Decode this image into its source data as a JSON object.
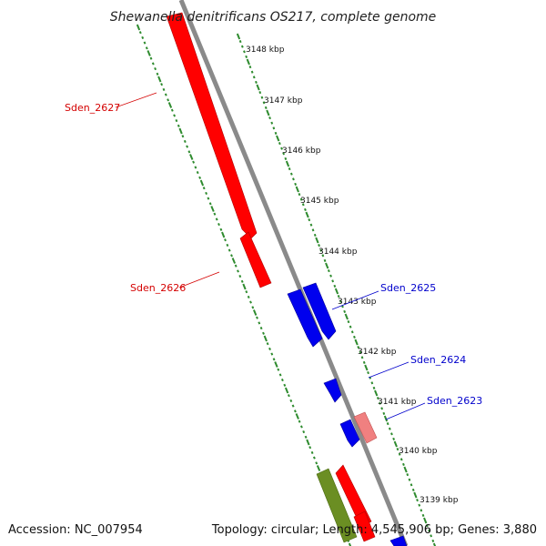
{
  "title": "Shewanella denitrificans OS217, complete genome",
  "accession": "Accession: NC_007954",
  "summary": "Topology: circular; Length: 4,545,906 bp; Genes: 3,880",
  "colors": {
    "backbone": "#8a8a8a",
    "tick_dots": "#2e8b2e",
    "forward_gene": "#ff0000",
    "reverse_gene": "#0000ee",
    "pale_gene": "#f08080",
    "olive_gene": "#6b8e23",
    "label_forward": "#d40000",
    "label_reverse": "#0000cc"
  },
  "ticks": [
    {
      "label": "3148 kbp"
    },
    {
      "label": "3147 kbp"
    },
    {
      "label": "3146 kbp"
    },
    {
      "label": "3145 kbp"
    },
    {
      "label": "3144 kbp"
    },
    {
      "label": "3143 kbp"
    },
    {
      "label": "3142 kbp"
    },
    {
      "label": "3141 kbp"
    },
    {
      "label": "3140 kbp"
    },
    {
      "label": "3139 kbp"
    }
  ],
  "gene_labels": [
    {
      "text": "Sden_2627",
      "strand": "forward"
    },
    {
      "text": "Sden_2626",
      "strand": "forward"
    },
    {
      "text": "Sden_2625",
      "strand": "reverse"
    },
    {
      "text": "Sden_2624",
      "strand": "reverse"
    },
    {
      "text": "Sden_2623",
      "strand": "reverse"
    }
  ]
}
